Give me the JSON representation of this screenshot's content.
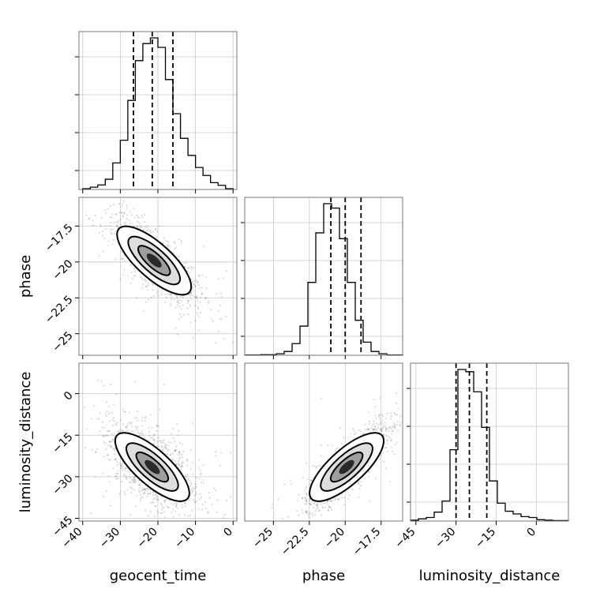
{
  "chart_data": {
    "type": "corner",
    "parameters": [
      "geocent_time",
      "phase",
      "luminosity_distance"
    ],
    "grid": true,
    "panels": [
      {
        "id": "hist-geocent_time",
        "type": "histogram",
        "row": 0,
        "col": 0,
        "xlabel": "",
        "ylabel": "",
        "xlim": [
          -41,
          1
        ],
        "xticks": [
          -40,
          -30,
          -20,
          -10,
          0
        ],
        "yticks": [],
        "quantiles": [
          -26.5,
          -21.5,
          -16
        ],
        "bins": {
          "edges": [
            -40,
            -38,
            -36,
            -34,
            -32,
            -30,
            -28,
            -26,
            -24,
            -22,
            -20,
            -18,
            -16,
            -14,
            -12,
            -10,
            -8,
            -6,
            -4,
            -2,
            0
          ],
          "counts": [
            2,
            6,
            12,
            27,
            70,
            130,
            235,
            340,
            385,
            400,
            375,
            290,
            200,
            135,
            90,
            58,
            37,
            18,
            11,
            2
          ]
        }
      },
      {
        "id": "hist-phase",
        "type": "histogram",
        "row": 1,
        "col": 1,
        "xlabel": "",
        "ylabel": "",
        "xlim": [
          -27,
          -16
        ],
        "xticks": [
          -25.0,
          -22.5,
          -20.0,
          -17.5
        ],
        "yticks": [],
        "quantiles": [
          -21.0,
          -20.0,
          -18.9
        ],
        "bins": {
          "edges": [
            -27.0,
            -26.45,
            -25.9,
            -25.35,
            -24.8,
            -24.25,
            -23.7,
            -23.15,
            -22.6,
            -22.05,
            -21.5,
            -20.95,
            -20.4,
            -19.85,
            -19.3,
            -18.75,
            -18.2,
            -17.65,
            -17.1,
            -16.55,
            -16.0
          ],
          "counts": [
            1,
            1,
            2,
            2,
            5,
            13,
            40,
            100,
            250,
            420,
            520,
            505,
            400,
            250,
            120,
            45,
            13,
            5,
            1,
            1
          ]
        }
      },
      {
        "id": "hist-luminosity_distance",
        "type": "histogram",
        "row": 2,
        "col": 2,
        "xlabel": "luminosity_distance",
        "ylabel": "",
        "xlim": [
          -47,
          12
        ],
        "xticks": [
          -45,
          -30,
          -15,
          0
        ],
        "yticks": [],
        "quantiles": [
          -30,
          -25,
          -18.5
        ],
        "bins": {
          "edges": [
            -47,
            -44.05,
            -41.1,
            -38.15,
            -35.2,
            -32.25,
            -29.3,
            -26.35,
            -23.4,
            -20.45,
            -17.5,
            -14.55,
            -11.6,
            -8.65,
            -5.7,
            -2.75,
            0.2,
            3.15,
            6.1,
            9.05,
            12.0
          ],
          "counts": [
            2,
            5,
            8,
            20,
            45,
            160,
            340,
            335,
            290,
            210,
            90,
            40,
            22,
            16,
            10,
            8,
            3,
            2,
            1,
            1
          ]
        }
      },
      {
        "id": "scatter-geocent_time-phase",
        "type": "2d-density",
        "row": 1,
        "col": 0,
        "x_param": "geocent_time",
        "y_param": "phase",
        "xlabel": "",
        "ylabel": "phase",
        "xlim": [
          -41,
          1
        ],
        "ylim": [
          -26.5,
          -15.5
        ],
        "xticks": [
          -40,
          -30,
          -20,
          -10,
          0
        ],
        "yticks": [
          -25.0,
          -22.5,
          -20.0,
          -17.5
        ],
        "center": [
          -21,
          -19.9
        ],
        "correlation": -0.8
      },
      {
        "id": "scatter-geocent_time-luminosity_distance",
        "type": "2d-density",
        "row": 2,
        "col": 0,
        "x_param": "geocent_time",
        "y_param": "luminosity_distance",
        "xlabel": "geocent_time",
        "ylabel": "luminosity_distance",
        "xlim": [
          -41,
          1
        ],
        "ylim": [
          -46,
          11
        ],
        "xticks": [
          -40,
          -30,
          -20,
          -10,
          0
        ],
        "yticks": [
          -45,
          -30,
          -15,
          0
        ],
        "center": [
          -21.5,
          -26.5
        ],
        "correlation": -0.55
      },
      {
        "id": "scatter-phase-luminosity_distance",
        "type": "2d-density",
        "row": 2,
        "col": 1,
        "x_param": "phase",
        "y_param": "luminosity_distance",
        "xlabel": "phase",
        "ylabel": "",
        "xlim": [
          -27,
          -16
        ],
        "ylim": [
          -46,
          11
        ],
        "xticks": [
          -25.0,
          -22.5,
          -20.0,
          -17.5
        ],
        "yticks": [],
        "center": [
          -19.9,
          -26.5
        ],
        "correlation": 0.85
      }
    ]
  }
}
